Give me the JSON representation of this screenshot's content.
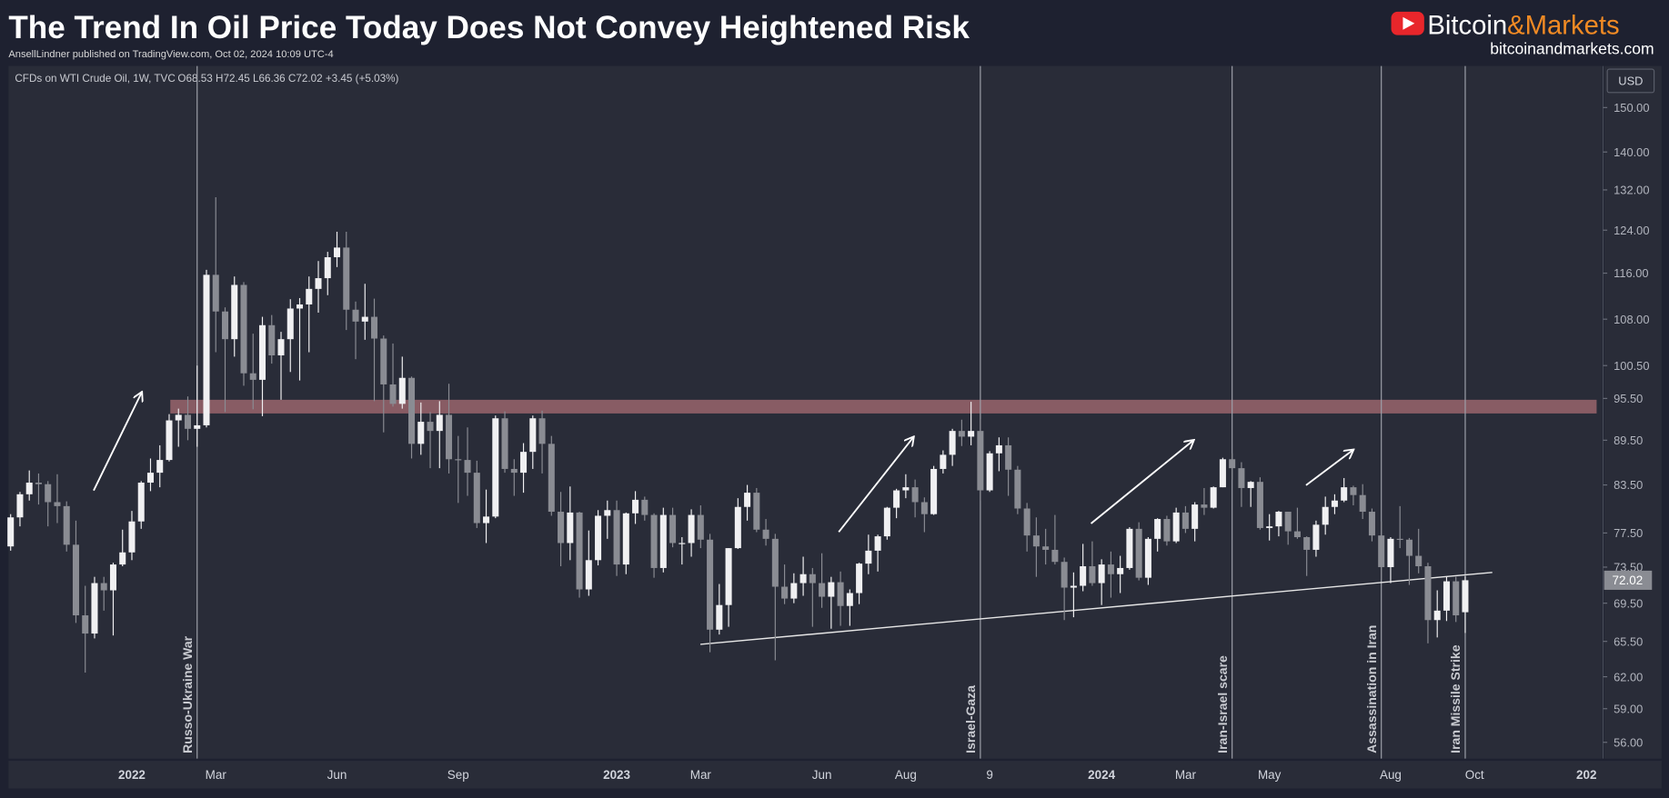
{
  "header": {
    "title": "The Trend In Oil Price Today Does Not Convey Heightened Risk",
    "byline": "AnsellLindner published on TradingView.com, Oct 02, 2024 10:09 UTC-4"
  },
  "brand": {
    "name_a": "Bitcoin",
    "name_b": "&Markets",
    "url": "bitcoinandmarkets.com"
  },
  "chart_data": {
    "type": "candlestick",
    "symbol": "CFDs on WTI Crude Oil, 1W, TVC",
    "ohlc_text": "O68.53 H72.45 L66.36 C72.02 +3.45 (+5.03%)",
    "currency": "USD",
    "log_scale": true,
    "up_color": "#f0f0f2",
    "down_color": "#8a8c93",
    "zone_color": "#c47b80",
    "trend_color": "#e6e6e6",
    "ylim": [
      54.6,
      160
    ],
    "yticks": [
      {
        "value": 56,
        "label": "56.00"
      },
      {
        "value": 59,
        "label": "59.00"
      },
      {
        "value": 62,
        "label": "62.00"
      },
      {
        "value": 65.5,
        "label": "65.50"
      },
      {
        "value": 69.5,
        "label": "69.50"
      },
      {
        "value": 73.5,
        "label": "73.50"
      },
      {
        "value": 77.5,
        "label": "77.50"
      },
      {
        "value": 83.5,
        "label": "83.50"
      },
      {
        "value": 89.5,
        "label": "89.50"
      },
      {
        "value": 95.5,
        "label": "95.50"
      },
      {
        "value": 100.5,
        "label": "100.50"
      },
      {
        "value": 108,
        "label": "108.00"
      },
      {
        "value": 116,
        "label": "116.00"
      },
      {
        "value": 124,
        "label": "124.00"
      },
      {
        "value": 132,
        "label": "132.00"
      },
      {
        "value": 140,
        "label": "140.00"
      },
      {
        "value": 150,
        "label": "150.00"
      }
    ],
    "zone": [
      93.3,
      95.3
    ],
    "trendline": [
      65.2,
      72.9
    ],
    "categories": [
      null,
      null,
      null,
      null,
      null,
      null,
      null,
      null,
      null,
      null,
      null,
      null,
      null,
      "2022",
      null,
      null,
      null,
      null,
      null,
      null,
      null,
      null,
      "Mar",
      null,
      null,
      null,
      null,
      null,
      null,
      null,
      null,
      null,
      null,
      null,
      null,
      "Jun",
      null,
      null,
      null,
      null,
      null,
      null,
      null,
      null,
      null,
      null,
      null,
      null,
      "Sep",
      null,
      null,
      null,
      null,
      null,
      null,
      null,
      null,
      null,
      null,
      null,
      null,
      null,
      null,
      null,
      null,
      "2023",
      null,
      null,
      null,
      null,
      null,
      null,
      null,
      null,
      "Mar",
      null,
      null,
      null,
      null,
      null,
      null,
      null,
      null,
      null,
      null,
      null,
      null,
      "Jun",
      null,
      null,
      null,
      null,
      null,
      null,
      null,
      null,
      "Aug",
      null,
      null,
      null,
      null,
      null,
      null,
      null,
      null,
      "9",
      null,
      null,
      null,
      null,
      null,
      null,
      null,
      null,
      null,
      null,
      null,
      "2024",
      null,
      null,
      null,
      null,
      null,
      null,
      null,
      null,
      "Mar",
      null,
      null,
      null,
      null,
      null,
      null,
      null,
      null,
      "May",
      null,
      null,
      null,
      null,
      null,
      null,
      null,
      null,
      null,
      null,
      null,
      null,
      "Aug",
      null,
      null,
      null,
      null,
      null,
      null,
      null,
      null,
      "Oct",
      null,
      null,
      null,
      null,
      null,
      null,
      null,
      null,
      null,
      null,
      null,
      "202",
      null
    ],
    "events": [
      null,
      null,
      null,
      null,
      null,
      null,
      null,
      null,
      null,
      null,
      null,
      null,
      null,
      null,
      null,
      null,
      null,
      null,
      null,
      null,
      "Russo-Ukraine War",
      null,
      null,
      null,
      null,
      null,
      null,
      null,
      null,
      null,
      null,
      null,
      null,
      null,
      null,
      null,
      null,
      null,
      null,
      null,
      null,
      null,
      null,
      null,
      null,
      null,
      null,
      null,
      null,
      null,
      null,
      null,
      null,
      null,
      null,
      null,
      null,
      null,
      null,
      null,
      null,
      null,
      null,
      null,
      null,
      null,
      null,
      null,
      null,
      null,
      null,
      null,
      null,
      null,
      null,
      null,
      null,
      null,
      null,
      null,
      null,
      null,
      null,
      null,
      null,
      null,
      null,
      null,
      null,
      null,
      null,
      null,
      null,
      null,
      null,
      null,
      null,
      null,
      null,
      null,
      null,
      null,
      null,
      null,
      "Israel-Gaza",
      null,
      null,
      null,
      null,
      null,
      null,
      null,
      null,
      null,
      null,
      null,
      null,
      null,
      null,
      null,
      null,
      null,
      null,
      null,
      null,
      null,
      null,
      null,
      null,
      null,
      null,
      "Iran-Israel scare",
      null,
      null,
      null,
      null,
      null,
      null,
      null,
      null,
      null,
      null,
      null,
      null,
      null,
      null,
      null,
      "Assassination in Iran",
      null,
      null,
      null,
      null,
      null,
      null,
      null,
      null,
      "Iran Missile Strike",
      null,
      null,
      null,
      null,
      null,
      null,
      null,
      null,
      null,
      null,
      null,
      null,
      null,
      null
    ],
    "values": [
      [
        75.9,
        79.8,
        75.4,
        79.4
      ],
      [
        79.4,
        82.6,
        78.3,
        82.3
      ],
      [
        82.3,
        85.4,
        81.5,
        83.8
      ],
      [
        83.8,
        85.0,
        81.0,
        83.6
      ],
      [
        83.6,
        84.0,
        78.3,
        81.3
      ],
      [
        81.3,
        84.9,
        78.7,
        80.8
      ],
      [
        80.8,
        81.4,
        75.3,
        76.1
      ],
      [
        76.1,
        79.0,
        67.4,
        68.2
      ],
      [
        68.2,
        71.4,
        62.4,
        66.3
      ],
      [
        66.3,
        72.4,
        65.8,
        71.7
      ],
      [
        71.7,
        72.4,
        68.7,
        70.9
      ],
      [
        70.9,
        74.0,
        66.1,
        73.8
      ],
      [
        73.8,
        77.9,
        73.6,
        75.2
      ],
      [
        75.2,
        80.2,
        74.3,
        78.9
      ],
      [
        78.9,
        84.0,
        78.0,
        83.8
      ],
      [
        83.8,
        87.0,
        82.7,
        85.1
      ],
      [
        85.1,
        88.8,
        83.2,
        86.8
      ],
      [
        86.8,
        93.2,
        86.6,
        92.3
      ],
      [
        92.3,
        94.0,
        88.6,
        93.1
      ],
      [
        93.1,
        95.8,
        89.5,
        91.1
      ],
      [
        91.1,
        100.5,
        88.6,
        91.6
      ],
      [
        91.6,
        116.6,
        91.3,
        115.7
      ],
      [
        115.7,
        130.5,
        102.6,
        109.3
      ],
      [
        109.3,
        110.0,
        93.5,
        104.7
      ],
      [
        104.7,
        115.4,
        101.9,
        113.9
      ],
      [
        113.9,
        114.4,
        97.4,
        99.3
      ],
      [
        99.3,
        105.6,
        93.9,
        98.3
      ],
      [
        98.3,
        108.4,
        92.9,
        107.0
      ],
      [
        107.0,
        108.7,
        100.8,
        102.1
      ],
      [
        102.1,
        105.9,
        95.3,
        104.7
      ],
      [
        104.7,
        111.4,
        99.5,
        109.8
      ],
      [
        109.8,
        111.6,
        98.2,
        110.5
      ],
      [
        110.5,
        115.4,
        102.6,
        113.2
      ],
      [
        113.2,
        118.2,
        109.1,
        115.1
      ],
      [
        115.1,
        119.9,
        112.1,
        118.9
      ],
      [
        118.9,
        123.7,
        117.1,
        120.7
      ],
      [
        120.7,
        123.7,
        106.2,
        109.6
      ],
      [
        109.6,
        111.0,
        101.5,
        107.6
      ],
      [
        107.6,
        114.1,
        104.6,
        108.4
      ],
      [
        108.4,
        111.5,
        95.1,
        104.8
      ],
      [
        104.8,
        105.3,
        90.6,
        97.6
      ],
      [
        97.6,
        104.0,
        94.3,
        94.7
      ],
      [
        94.7,
        101.9,
        94.0,
        98.6
      ],
      [
        98.6,
        98.8,
        87.0,
        89.0
      ],
      [
        89.0,
        94.9,
        87.5,
        92.1
      ],
      [
        92.1,
        93.5,
        85.7,
        90.8
      ],
      [
        90.8,
        95.1,
        85.7,
        93.1
      ],
      [
        93.1,
        97.7,
        85.0,
        86.9
      ],
      [
        86.9,
        90.1,
        81.2,
        86.8
      ],
      [
        86.8,
        91.3,
        82.1,
        85.1
      ],
      [
        85.1,
        86.7,
        78.1,
        78.7
      ],
      [
        78.7,
        82.9,
        76.3,
        79.5
      ],
      [
        79.5,
        93.0,
        79.3,
        92.6
      ],
      [
        92.6,
        93.6,
        85.1,
        85.6
      ],
      [
        85.6,
        86.9,
        82.1,
        85.1
      ],
      [
        85.1,
        89.1,
        82.5,
        87.9
      ],
      [
        87.9,
        93.0,
        85.6,
        92.6
      ],
      [
        92.6,
        93.7,
        85.0,
        89.0
      ],
      [
        89.0,
        90.1,
        79.6,
        80.1
      ],
      [
        80.1,
        82.6,
        73.6,
        76.3
      ],
      [
        76.3,
        83.3,
        74.3,
        80.0
      ],
      [
        80.0,
        80.1,
        70.1,
        71.0
      ],
      [
        71.0,
        77.8,
        70.3,
        74.3
      ],
      [
        74.3,
        80.3,
        73.7,
        79.6
      ],
      [
        79.6,
        81.5,
        76.8,
        80.3
      ],
      [
        80.3,
        81.5,
        72.5,
        73.8
      ],
      [
        73.8,
        80.0,
        72.7,
        79.9
      ],
      [
        79.9,
        82.7,
        78.6,
        81.6
      ],
      [
        81.6,
        82.0,
        79.0,
        79.7
      ],
      [
        79.7,
        79.9,
        72.3,
        73.4
      ],
      [
        73.4,
        80.6,
        72.9,
        79.7
      ],
      [
        79.7,
        80.6,
        75.8,
        76.3
      ],
      [
        76.3,
        77.0,
        73.8,
        76.3
      ],
      [
        76.3,
        80.4,
        74.7,
        79.7
      ],
      [
        79.7,
        80.9,
        75.7,
        76.7
      ],
      [
        76.7,
        77.4,
        64.4,
        66.7
      ],
      [
        66.7,
        71.6,
        66.2,
        69.3
      ],
      [
        69.3,
        75.7,
        67.0,
        75.7
      ],
      [
        75.7,
        81.8,
        75.6,
        80.7
      ],
      [
        80.7,
        83.5,
        79.0,
        82.5
      ],
      [
        82.5,
        83.1,
        77.6,
        77.9
      ],
      [
        77.9,
        79.2,
        76.0,
        76.8
      ],
      [
        76.8,
        77.4,
        63.6,
        71.3
      ],
      [
        71.3,
        73.8,
        69.4,
        70.0
      ],
      [
        70.0,
        72.8,
        69.5,
        71.7
      ],
      [
        71.7,
        74.7,
        70.3,
        72.7
      ],
      [
        72.7,
        73.4,
        67.0,
        71.7
      ],
      [
        71.7,
        75.1,
        69.0,
        70.2
      ],
      [
        70.2,
        72.4,
        66.8,
        71.8
      ],
      [
        71.8,
        73.0,
        67.1,
        69.2
      ],
      [
        69.2,
        71.0,
        67.1,
        70.6
      ],
      [
        70.6,
        74.0,
        69.4,
        73.9
      ],
      [
        73.9,
        77.3,
        72.7,
        75.4
      ],
      [
        75.4,
        77.3,
        73.0,
        77.1
      ],
      [
        77.1,
        80.7,
        76.7,
        80.6
      ],
      [
        80.6,
        83.0,
        79.3,
        82.8
      ],
      [
        82.8,
        84.9,
        81.8,
        83.2
      ],
      [
        83.2,
        84.2,
        79.4,
        81.3
      ],
      [
        81.3,
        81.9,
        77.6,
        79.8
      ],
      [
        79.8,
        86.0,
        79.7,
        85.6
      ],
      [
        85.6,
        88.1,
        85.0,
        87.5
      ],
      [
        87.5,
        91.1,
        86.0,
        90.8
      ],
      [
        90.8,
        92.4,
        88.7,
        90.0
      ],
      [
        90.0,
        95.0,
        88.8,
        90.8
      ],
      [
        90.8,
        92.5,
        81.5,
        82.8
      ],
      [
        82.8,
        88.0,
        82.6,
        87.7
      ],
      [
        87.7,
        89.9,
        85.3,
        88.8
      ],
      [
        88.8,
        89.9,
        82.1,
        85.5
      ],
      [
        85.5,
        86.0,
        79.8,
        80.5
      ],
      [
        80.5,
        81.2,
        75.3,
        77.2
      ],
      [
        77.2,
        79.4,
        72.4,
        75.9
      ],
      [
        75.9,
        78.0,
        73.8,
        75.5
      ],
      [
        75.5,
        79.7,
        73.8,
        74.1
      ],
      [
        74.1,
        74.6,
        67.7,
        71.2
      ],
      [
        71.2,
        72.9,
        68.0,
        71.4
      ],
      [
        71.4,
        76.2,
        70.8,
        73.6
      ],
      [
        73.6,
        76.5,
        71.4,
        71.7
      ],
      [
        71.7,
        74.4,
        69.3,
        73.8
      ],
      [
        73.8,
        75.3,
        70.1,
        72.7
      ],
      [
        72.7,
        74.8,
        70.6,
        73.4
      ],
      [
        73.4,
        78.2,
        73.2,
        78.0
      ],
      [
        78.0,
        78.8,
        72.0,
        72.3
      ],
      [
        72.3,
        77.0,
        71.5,
        76.8
      ],
      [
        76.8,
        79.3,
        75.3,
        79.2
      ],
      [
        79.2,
        79.6,
        76.0,
        76.5
      ],
      [
        76.5,
        80.6,
        76.3,
        80.0
      ],
      [
        80.0,
        80.8,
        77.5,
        78.0
      ],
      [
        78.0,
        81.3,
        76.5,
        81.0
      ],
      [
        81.0,
        83.1,
        79.7,
        80.6
      ],
      [
        80.6,
        83.3,
        80.5,
        83.2
      ],
      [
        83.2,
        87.1,
        83.2,
        86.9
      ],
      [
        86.9,
        87.7,
        84.2,
        85.7
      ],
      [
        85.7,
        86.5,
        80.7,
        83.1
      ],
      [
        83.1,
        84.0,
        80.7,
        83.9
      ],
      [
        83.9,
        84.5,
        77.9,
        78.1
      ],
      [
        78.1,
        79.8,
        76.6,
        78.3
      ],
      [
        78.3,
        80.2,
        77.1,
        80.1
      ],
      [
        80.1,
        80.1,
        76.1,
        77.7
      ],
      [
        77.7,
        80.6,
        76.8,
        77.0
      ],
      [
        77.0,
        77.1,
        72.5,
        75.5
      ],
      [
        75.5,
        79.0,
        74.7,
        78.5
      ],
      [
        78.5,
        82.0,
        77.3,
        80.7
      ],
      [
        80.7,
        82.3,
        79.8,
        81.5
      ],
      [
        81.5,
        84.4,
        81.3,
        83.2
      ],
      [
        83.2,
        83.4,
        80.9,
        82.2
      ],
      [
        82.2,
        83.6,
        79.2,
        80.1
      ],
      [
        80.1,
        80.5,
        76.5,
        77.2
      ],
      [
        77.2,
        78.9,
        72.1,
        73.5
      ],
      [
        73.5,
        77.0,
        71.7,
        76.8
      ],
      [
        76.8,
        80.8,
        75.7,
        76.7
      ],
      [
        76.7,
        76.9,
        71.5,
        74.8
      ],
      [
        74.8,
        78.0,
        72.8,
        73.6
      ],
      [
        73.6,
        74.0,
        65.3,
        67.7
      ],
      [
        67.7,
        70.9,
        65.9,
        68.7
      ],
      [
        68.7,
        72.4,
        67.6,
        71.9
      ],
      [
        71.9,
        72.4,
        67.5,
        68.2
      ],
      [
        68.53,
        72.45,
        66.36,
        72.02
      ],
      null,
      null,
      null,
      null,
      null,
      null,
      null,
      null,
      null,
      null,
      null,
      null,
      null,
      null
    ]
  }
}
